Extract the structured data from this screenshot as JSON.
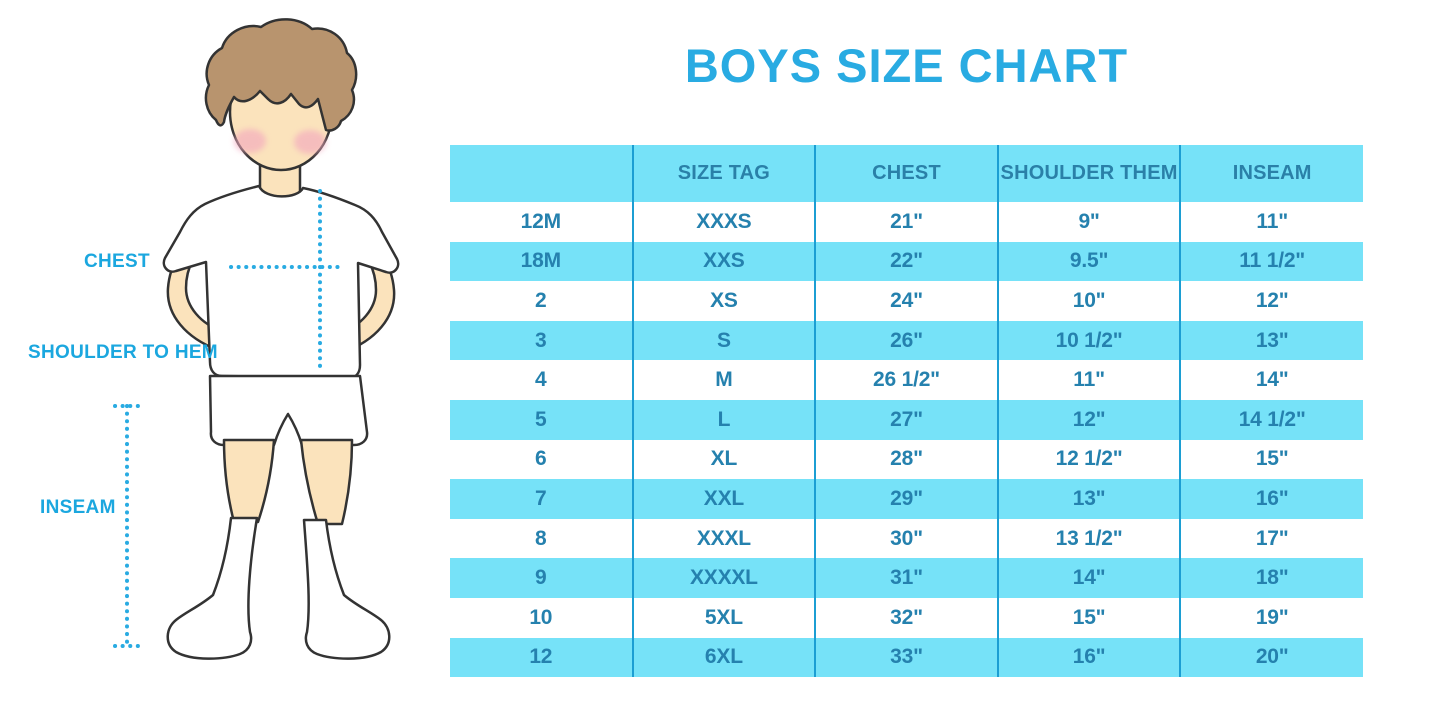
{
  "title": "BOYS SIZE CHART",
  "diagram": {
    "labels": {
      "chest": "CHEST",
      "shoulder_to_hem": "SHOULDER TO HEM",
      "inseam": "INSEAM"
    }
  },
  "chart_data": {
    "type": "table",
    "title": "BOYS SIZE CHART",
    "columns": [
      "",
      "SIZE TAG",
      "CHEST",
      "SHOULDER THEM",
      "INSEAM"
    ],
    "rows": [
      [
        "12M",
        "XXXS",
        "21\"",
        "9\"",
        "11\""
      ],
      [
        "18M",
        "XXS",
        "22\"",
        "9.5\"",
        "11 1/2\""
      ],
      [
        "2",
        "XS",
        "24\"",
        "10\"",
        "12\""
      ],
      [
        "3",
        "S",
        "26\"",
        "10 1/2\"",
        "13\""
      ],
      [
        "4",
        "M",
        "26 1/2\"",
        "11\"",
        "14\""
      ],
      [
        "5",
        "L",
        "27\"",
        "12\"",
        "14 1/2\""
      ],
      [
        "6",
        "XL",
        "28\"",
        "12 1/2\"",
        "15\""
      ],
      [
        "7",
        "XXL",
        "29\"",
        "13\"",
        "16\""
      ],
      [
        "8",
        "XXXL",
        "30\"",
        "13 1/2\"",
        "17\""
      ],
      [
        "9",
        "XXXXL",
        "31\"",
        "14\"",
        "18\""
      ],
      [
        "10",
        "5XL",
        "32\"",
        "15\"",
        "19\""
      ],
      [
        "12",
        "6XL",
        "33\"",
        "16\"",
        "20\""
      ]
    ],
    "layout": {
      "alternating_row_colors": [
        "#FFFFFF",
        "#76E2F8"
      ],
      "header_background": "#76E2F8",
      "grid": "vertical-dividers-only"
    }
  },
  "colors": {
    "accent_blue": "#29ABE2",
    "row_cyan": "#76E2F8",
    "table_text": "#2581AE",
    "divider": "#1C9ED3",
    "skin": "#FBE3BC",
    "hair": "#B8946E",
    "cheek": "#F3A9BE"
  }
}
